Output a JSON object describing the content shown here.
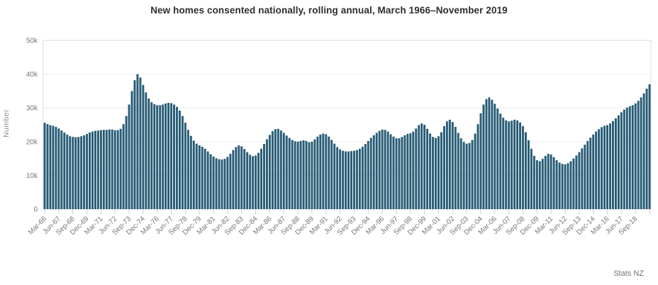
{
  "title": "New homes consented nationally, rolling annual, March 1966–November 2019",
  "attribution": "Stats NZ",
  "chart_data": {
    "type": "bar",
    "title": "New homes consented nationally, rolling annual, March 1966–November 2019",
    "xlabel": "",
    "ylabel": "Number",
    "unit": "thousands of new homes consented (rolling annual total)",
    "x_start": "Mar-66",
    "x_end": "Nov-19",
    "frequency": "quarterly",
    "ylim": [
      0,
      50
    ],
    "grid": "horizontal",
    "legend": "none",
    "bar_color": "#285C76",
    "grid_color": "#ebebee",
    "border_color": "#dcdce0",
    "tick_color": "#c9cde8",
    "label_color": "#757575",
    "y_tick_labels": [
      "0",
      "10k",
      "20k",
      "30k",
      "40k",
      "50k"
    ],
    "y_tick_values": [
      0,
      10,
      20,
      30,
      40,
      50
    ],
    "x_tick_labels": [
      "Mar-66",
      "Jun-67",
      "Sep-68",
      "Dec-69",
      "Mar-71",
      "Jun-72",
      "Sep-73",
      "Dec-74",
      "Mar-76",
      "Jun-77",
      "Sep-78",
      "Dec-79",
      "Mar-81",
      "Jun-82",
      "Sep-83",
      "Dec-84",
      "Mar-86",
      "Jun-87",
      "Sep-88",
      "Dec-89",
      "Mar-91",
      "Jun-92",
      "Sep-93",
      "Dec-94",
      "Mar-96",
      "Jun-97",
      "Sep-98",
      "Dec-99",
      "Mar-01",
      "Jun-02",
      "Sep-03",
      "Dec-04",
      "Mar-06",
      "Jun-07",
      "Sep-08",
      "Dec-09",
      "Mar-11",
      "Jun-12",
      "Sep-13",
      "Dec-14",
      "Mar-16",
      "Jun-17",
      "Sep-18"
    ],
    "x_tick_interval": 5,
    "values": [
      25.6,
      25.2,
      24.9,
      24.7,
      24.4,
      23.9,
      23.3,
      22.7,
      22.1,
      21.6,
      21.4,
      21.3,
      21.4,
      21.6,
      21.9,
      22.3,
      22.7,
      23.0,
      23.2,
      23.3,
      23.4,
      23.5,
      23.5,
      23.6,
      23.6,
      23.4,
      23.4,
      23.8,
      25.2,
      27.6,
      31.0,
      35.0,
      38.2,
      40.0,
      39.0,
      36.8,
      34.6,
      32.8,
      31.7,
      31.1,
      30.8,
      30.8,
      31.0,
      31.3,
      31.5,
      31.4,
      31.0,
      30.3,
      29.2,
      27.6,
      25.6,
      23.5,
      21.7,
      20.3,
      19.4,
      18.9,
      18.5,
      17.9,
      17.1,
      16.3,
      15.6,
      15.1,
      14.8,
      14.7,
      14.9,
      15.5,
      16.4,
      17.5,
      18.4,
      18.9,
      18.6,
      17.8,
      16.9,
      16.1,
      15.7,
      15.9,
      16.7,
      17.9,
      19.3,
      20.7,
      22.0,
      23.1,
      23.7,
      23.8,
      23.3,
      22.6,
      21.8,
      21.1,
      20.5,
      20.1,
      20.0,
      20.2,
      20.4,
      20.2,
      19.8,
      20.0,
      20.7,
      21.5,
      22.1,
      22.4,
      22.2,
      21.5,
      20.5,
      19.4,
      18.4,
      17.7,
      17.3,
      17.1,
      17.1,
      17.2,
      17.3,
      17.5,
      17.9,
      18.5,
      19.3,
      20.2,
      21.1,
      21.9,
      22.6,
      23.2,
      23.6,
      23.5,
      23.0,
      22.2,
      21.5,
      21.0,
      21.0,
      21.4,
      21.9,
      22.3,
      22.5,
      23.0,
      23.9,
      24.9,
      25.4,
      25.0,
      23.8,
      22.4,
      21.4,
      21.1,
      21.6,
      22.8,
      24.6,
      26.0,
      26.5,
      25.8,
      24.4,
      22.6,
      21.0,
      19.9,
      19.4,
      19.6,
      20.5,
      22.4,
      25.2,
      28.4,
      31.0,
      32.6,
      33.1,
      32.4,
      31.2,
      29.8,
      28.3,
      27.1,
      26.3,
      26.0,
      26.2,
      26.5,
      26.3,
      25.7,
      24.6,
      22.8,
      20.4,
      17.9,
      15.8,
      14.5,
      14.2,
      14.9,
      15.8,
      16.4,
      16.2,
      15.4,
      14.5,
      13.8,
      13.4,
      13.3,
      13.6,
      14.2,
      15.0,
      15.9,
      16.9,
      18.0,
      19.1,
      20.2,
      21.2,
      22.1,
      23.0,
      23.7,
      24.3,
      24.7,
      24.9,
      25.4,
      26.1,
      26.9,
      27.8,
      28.7,
      29.5,
      30.1,
      30.5,
      30.8,
      31.3,
      32.1,
      33.1,
      34.3,
      35.7,
      37.0
    ]
  }
}
